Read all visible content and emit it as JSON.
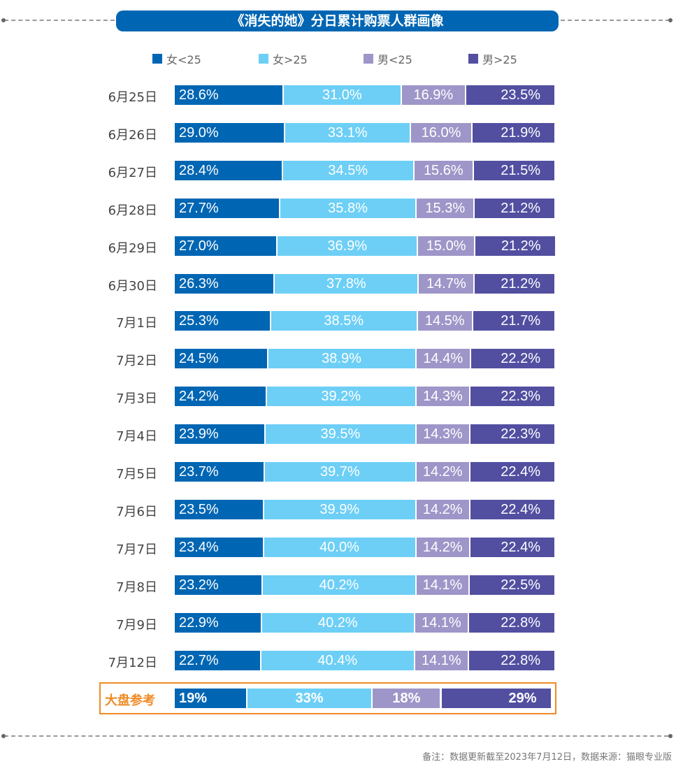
{
  "title": "《消失的她》分日累计购票人群画像",
  "footnote": "备注：数据更新截至2023年7月12日，数据来源：猫眼专业版",
  "chart_data": {
    "type": "bar",
    "orientation": "horizontal-stacked-100",
    "legend_position": "top",
    "series": [
      {
        "name": "女<25",
        "color": "#0066b3"
      },
      {
        "name": "女>25",
        "color": "#6dcff6"
      },
      {
        "name": "男<25",
        "color": "#9e96c8"
      },
      {
        "name": "男>25",
        "color": "#524fa1"
      }
    ],
    "categories": [
      "6月25日",
      "6月26日",
      "6月27日",
      "6月28日",
      "6月29日",
      "6月30日",
      "7月1日",
      "7月2日",
      "7月3日",
      "7月4日",
      "7月5日",
      "7月6日",
      "7月7日",
      "7月8日",
      "7月9日",
      "7月12日"
    ],
    "values": [
      [
        28.6,
        31.0,
        16.9,
        23.5
      ],
      [
        29.0,
        33.1,
        16.0,
        21.9
      ],
      [
        28.4,
        34.5,
        15.6,
        21.5
      ],
      [
        27.7,
        35.8,
        15.3,
        21.2
      ],
      [
        27.0,
        36.9,
        15.0,
        21.2
      ],
      [
        26.3,
        37.8,
        14.7,
        21.2
      ],
      [
        25.3,
        38.5,
        14.5,
        21.7
      ],
      [
        24.5,
        38.9,
        14.4,
        22.2
      ],
      [
        24.2,
        39.2,
        14.3,
        22.3
      ],
      [
        23.9,
        39.5,
        14.3,
        22.3
      ],
      [
        23.7,
        39.7,
        14.2,
        22.4
      ],
      [
        23.5,
        39.9,
        14.2,
        22.4
      ],
      [
        23.4,
        40.0,
        14.2,
        22.4
      ],
      [
        23.2,
        40.2,
        14.1,
        22.5
      ],
      [
        22.9,
        40.2,
        14.1,
        22.8
      ],
      [
        22.7,
        40.4,
        14.1,
        22.8
      ]
    ],
    "value_format": "0.0%",
    "reference": {
      "label": "大盘参考",
      "values": [
        19,
        33,
        18,
        29
      ],
      "value_format": "0%",
      "highlight_color": "#f08a24"
    }
  }
}
